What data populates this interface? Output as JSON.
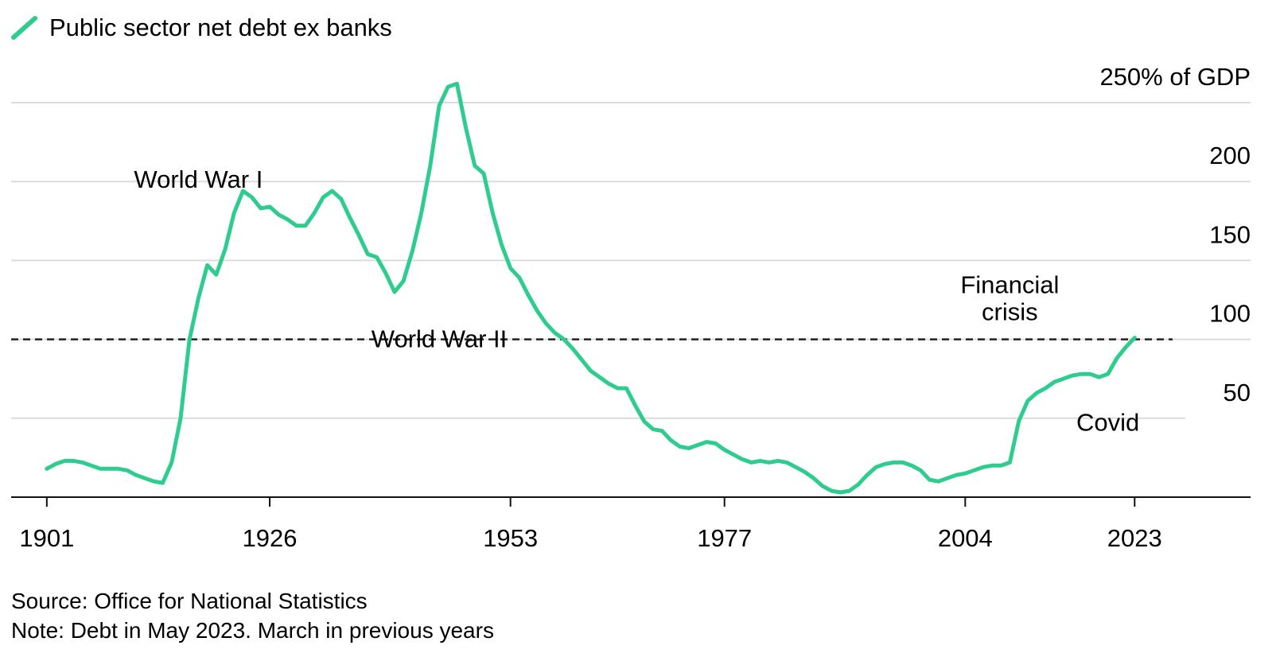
{
  "chart_data": {
    "type": "line",
    "legend": {
      "label": "Public sector net debt ex banks",
      "position": "top-left"
    },
    "ylabel": "% of GDP",
    "ylim": [
      0,
      250
    ],
    "yticks": [
      {
        "value": 50,
        "label": "50"
      },
      {
        "value": 100,
        "label": "100"
      },
      {
        "value": 150,
        "label": "150"
      },
      {
        "value": 200,
        "label": "200"
      },
      {
        "value": 250,
        "label": "250% of GDP"
      }
    ],
    "xlim": [
      1897,
      2036
    ],
    "xticks": [
      {
        "value": 1901,
        "label": "1901"
      },
      {
        "value": 1926,
        "label": "1926"
      },
      {
        "value": 1953,
        "label": "1953"
      },
      {
        "value": 1977,
        "label": "1977"
      },
      {
        "value": 2004,
        "label": "2004"
      },
      {
        "value": 2023,
        "label": "2023"
      }
    ],
    "reference_line": {
      "value": 100,
      "style": "dashed"
    },
    "series": [
      {
        "name": "Public sector net debt ex banks",
        "color": "#2ecc8f",
        "x": [
          1901,
          1902,
          1903,
          1904,
          1905,
          1906,
          1907,
          1908,
          1909,
          1910,
          1911,
          1912,
          1913,
          1914,
          1915,
          1916,
          1917,
          1918,
          1919,
          1920,
          1921,
          1922,
          1923,
          1924,
          1925,
          1926,
          1927,
          1928,
          1929,
          1930,
          1931,
          1932,
          1933,
          1934,
          1935,
          1936,
          1937,
          1938,
          1939,
          1940,
          1941,
          1942,
          1943,
          1944,
          1945,
          1946,
          1947,
          1948,
          1949,
          1950,
          1951,
          1952,
          1953,
          1954,
          1955,
          1956,
          1957,
          1958,
          1959,
          1960,
          1961,
          1962,
          1963,
          1964,
          1965,
          1966,
          1967,
          1968,
          1969,
          1970,
          1971,
          1972,
          1973,
          1974,
          1975,
          1976,
          1977,
          1978,
          1979,
          1980,
          1981,
          1982,
          1983,
          1984,
          1985,
          1986,
          1987,
          1988,
          1989,
          1990,
          1991,
          1992,
          1993,
          1994,
          1995,
          1996,
          1997,
          1998,
          1999,
          2000,
          2001,
          2002,
          2003,
          2004,
          2005,
          2006,
          2007,
          2008,
          2009,
          2010,
          2011,
          2012,
          2013,
          2014,
          2015,
          2016,
          2017,
          2018,
          2019,
          2020,
          2021,
          2022,
          2023
        ],
        "values": [
          18,
          21,
          23,
          23,
          22,
          20,
          18,
          18,
          18,
          17,
          14,
          12,
          10,
          9,
          22,
          50,
          100,
          126,
          147,
          141,
          157,
          180,
          194,
          190,
          183,
          184,
          179,
          176,
          172,
          172,
          180,
          190,
          194,
          189,
          177,
          166,
          154,
          152,
          142,
          130,
          137,
          156,
          180,
          210,
          248,
          260,
          262,
          234,
          210,
          205,
          180,
          160,
          145,
          139,
          128,
          118,
          110,
          104,
          100,
          94,
          87,
          80,
          76,
          72,
          69,
          69,
          58,
          48,
          43,
          42,
          36,
          32,
          31,
          33,
          35,
          34,
          30,
          27,
          24,
          22,
          23,
          22,
          23,
          22,
          19,
          16,
          12,
          7,
          4,
          3,
          4,
          8,
          14,
          19,
          21,
          22,
          22,
          20,
          17,
          11,
          10,
          12,
          14,
          15,
          17,
          19,
          20,
          20,
          22,
          48,
          61,
          66,
          69,
          73,
          75,
          77,
          78,
          78,
          76,
          78,
          88,
          95,
          101
        ]
      }
    ],
    "annotations": [
      {
        "text": "World War I",
        "x": 1918,
        "y": 196
      },
      {
        "text": "World War II",
        "x": 1945,
        "y": 95
      },
      {
        "text": "Financial crisis",
        "x": 2009,
        "y": 100
      },
      {
        "text": "Covid",
        "x": 2020,
        "y": 42
      }
    ],
    "source": "Source: Office for National Statistics",
    "note": "Note: Debt in May 2023. March in previous years"
  }
}
